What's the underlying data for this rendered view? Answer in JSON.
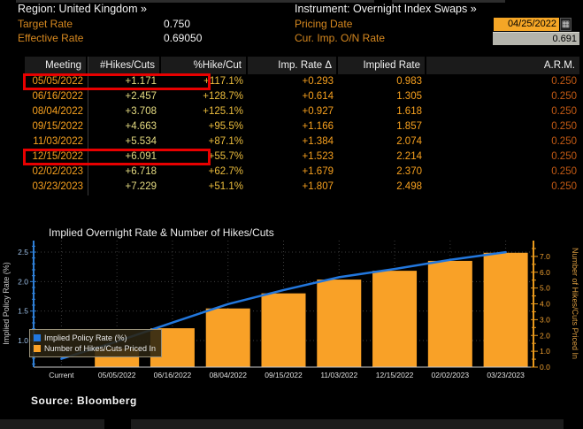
{
  "header": {
    "region": "Region: United Kingdom »",
    "instrument": "Instrument: Overnight Index Swaps »",
    "target_rate_label": "Target Rate",
    "target_rate_value": "0.750",
    "effective_rate_label": "Effective Rate",
    "effective_rate_value": "0.69050",
    "pricing_date_label": "Pricing Date",
    "pricing_date_value": "04/25/2022",
    "cur_imp_rate_label": "Cur. Imp. O/N Rate",
    "cur_imp_rate_value": "0.691"
  },
  "table": {
    "columns": [
      "Meeting",
      "#Hikes/Cuts",
      "%Hike/Cut",
      "Imp. Rate Δ",
      "Implied Rate",
      "A.R.M."
    ],
    "column_colors": [
      "#f7a01e",
      "#e6dc82",
      "#edbe3d",
      "#f7a01e",
      "#f7a01e",
      "#c35a14"
    ],
    "rows": [
      [
        "05/05/2022",
        "+1.171",
        "+117.1%",
        "+0.293",
        "0.983",
        "0.250"
      ],
      [
        "06/16/2022",
        "+2.457",
        "+128.7%",
        "+0.614",
        "1.305",
        "0.250"
      ],
      [
        "08/04/2022",
        "+3.708",
        "+125.1%",
        "+0.927",
        "1.618",
        "0.250"
      ],
      [
        "09/15/2022",
        "+4.663",
        "+95.5%",
        "+1.166",
        "1.857",
        "0.250"
      ],
      [
        "11/03/2022",
        "+5.534",
        "+87.1%",
        "+1.384",
        "2.074",
        "0.250"
      ],
      [
        "12/15/2022",
        "+6.091",
        "+55.7%",
        "+1.523",
        "2.214",
        "0.250"
      ],
      [
        "02/02/2023",
        "+6.718",
        "+62.7%",
        "+1.679",
        "2.370",
        "0.250"
      ],
      [
        "03/23/2023",
        "+7.229",
        "+51.1%",
        "+1.807",
        "2.498",
        "0.250"
      ]
    ],
    "highlighted_rows": [
      0,
      5
    ]
  },
  "chart_data": {
    "type": "bar",
    "title": "Implied Overnight Rate & Number of Hikes/Cuts",
    "categories": [
      "Current",
      "05/05/2022",
      "06/16/2022",
      "08/04/2022",
      "09/15/2022",
      "11/03/2022",
      "12/15/2022",
      "02/02/2023",
      "03/23/2023"
    ],
    "series": [
      {
        "name": "Implied Policy Rate (%)",
        "type": "line",
        "axis": "left",
        "color": "#2277dd",
        "values": [
          0.691,
          0.983,
          1.305,
          1.618,
          1.857,
          2.074,
          2.214,
          2.37,
          2.498
        ]
      },
      {
        "name": "Number of Hikes/Cuts Priced In",
        "type": "bar",
        "axis": "right",
        "color": "#f9a127",
        "values": [
          null,
          1.171,
          2.457,
          3.708,
          4.663,
          5.534,
          6.091,
          6.718,
          7.229
        ]
      }
    ],
    "left_axis": {
      "label": "Implied Policy Rate (%)",
      "ticks": [
        1.0,
        1.5,
        2.0,
        2.5
      ],
      "range": [
        0.55,
        2.695
      ],
      "color": "#2f7fd6",
      "tick_label_color": "#9dc0e8"
    },
    "right_axis": {
      "label": "Number of Hikes/Cuts Priced In",
      "ticks": [
        0,
        1,
        2,
        3,
        4,
        5,
        6,
        7
      ],
      "range": [
        0,
        8.0
      ],
      "color": "#e8991c",
      "tick_label_color": "#f0a030"
    },
    "grid": true,
    "legend_position": "bottom-left"
  },
  "footer": {
    "source": "Source: Bloomberg"
  },
  "colors": {
    "background": "#000000",
    "label_orange": "#d6881f",
    "value_orange": "#f7a01e",
    "highlight_red": "#e80000",
    "pricing_box_amber": "#f5a626",
    "rate_box_gray": "#b4b4ac"
  }
}
